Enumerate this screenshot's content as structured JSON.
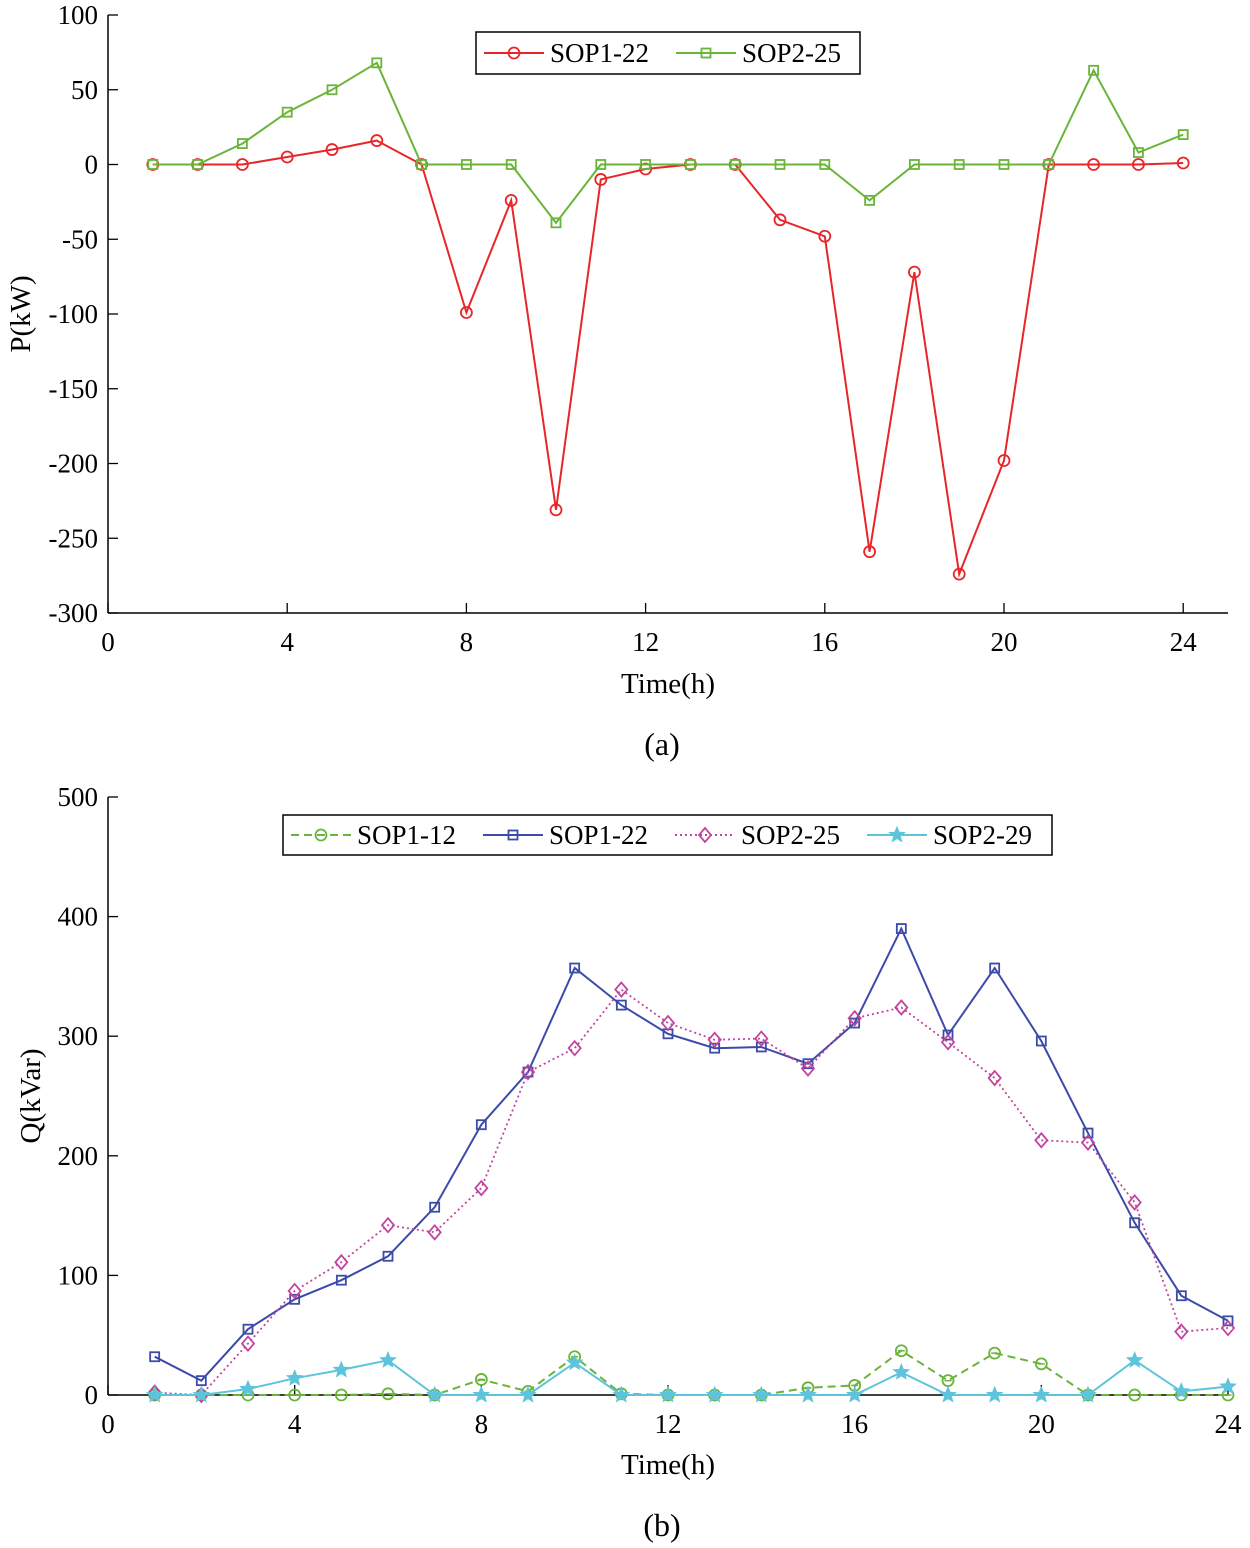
{
  "chart_data": [
    {
      "type": "line",
      "caption": "(a)",
      "xlabel": "Time(h)",
      "ylabel": "P(kW)",
      "xlim": [
        0,
        25
      ],
      "ylim": [
        -300,
        100
      ],
      "xticks": [
        0,
        4,
        8,
        12,
        16,
        20,
        24
      ],
      "yticks": [
        100,
        50,
        0,
        -50,
        -100,
        -150,
        -200,
        -250,
        -300
      ],
      "legend_position": "top-center",
      "x": [
        1,
        2,
        3,
        4,
        5,
        6,
        7,
        8,
        9,
        10,
        11,
        12,
        13,
        14,
        15,
        16,
        17,
        18,
        19,
        20,
        21,
        22,
        23,
        24
      ],
      "series": [
        {
          "name": "SOP1-22",
          "color": "#e8262a",
          "marker": "circle",
          "dash": "solid",
          "values": [
            0,
            0,
            0,
            5,
            10,
            16,
            0,
            -99,
            -24,
            -231,
            -10,
            -3,
            0,
            0,
            -37,
            -48,
            -259,
            -72,
            -274,
            -198,
            0,
            0,
            0,
            1
          ]
        },
        {
          "name": "SOP2-25",
          "color": "#6ab43a",
          "marker": "square",
          "dash": "solid",
          "values": [
            0,
            0,
            14,
            35,
            50,
            68,
            0,
            0,
            0,
            -39,
            0,
            0,
            0,
            0,
            0,
            0,
            -24,
            0,
            0,
            0,
            0,
            63,
            8,
            20
          ]
        }
      ]
    },
    {
      "type": "line",
      "caption": "(b)",
      "xlabel": "Time(h)",
      "ylabel": "Q(kVar)",
      "xlim": [
        0,
        24
      ],
      "ylim": [
        0,
        500
      ],
      "xticks": [
        0,
        4,
        8,
        12,
        16,
        20,
        24
      ],
      "yticks": [
        500,
        400,
        300,
        200,
        100,
        0
      ],
      "legend_position": "top-center",
      "x": [
        1,
        2,
        3,
        4,
        5,
        6,
        7,
        8,
        9,
        10,
        11,
        12,
        13,
        14,
        15,
        16,
        17,
        18,
        19,
        20,
        21,
        22,
        23,
        24
      ],
      "series": [
        {
          "name": "SOP1-12",
          "color": "#6ab43a",
          "marker": "circle-dash",
          "dash": "dashed",
          "values": [
            0,
            0,
            0,
            0,
            0,
            1,
            0,
            13,
            3,
            32,
            1,
            0,
            0,
            0,
            6,
            8,
            37,
            12,
            35,
            26,
            0,
            0,
            0,
            0
          ]
        },
        {
          "name": "SOP1-22",
          "color": "#3c4aa8",
          "marker": "square",
          "dash": "solid",
          "values": [
            32,
            12,
            55,
            80,
            96,
            116,
            157,
            226,
            270,
            357,
            326,
            302,
            290,
            291,
            277,
            311,
            390,
            301,
            357,
            296,
            219,
            144,
            83,
            62
          ]
        },
        {
          "name": "SOP2-25",
          "color": "#c2449f",
          "marker": "diamond",
          "dash": "dotted",
          "values": [
            2,
            0,
            43,
            87,
            111,
            142,
            136,
            173,
            270,
            290,
            339,
            311,
            297,
            298,
            273,
            315,
            324,
            295,
            265,
            213,
            211,
            161,
            53,
            56
          ]
        },
        {
          "name": "SOP2-29",
          "color": "#5ec4dc",
          "marker": "star",
          "dash": "solid",
          "values": [
            0,
            0,
            5,
            14,
            21,
            29,
            0,
            0,
            0,
            27,
            0,
            0,
            0,
            0,
            0,
            0,
            19,
            0,
            0,
            0,
            0,
            29,
            3,
            7
          ]
        }
      ]
    }
  ]
}
